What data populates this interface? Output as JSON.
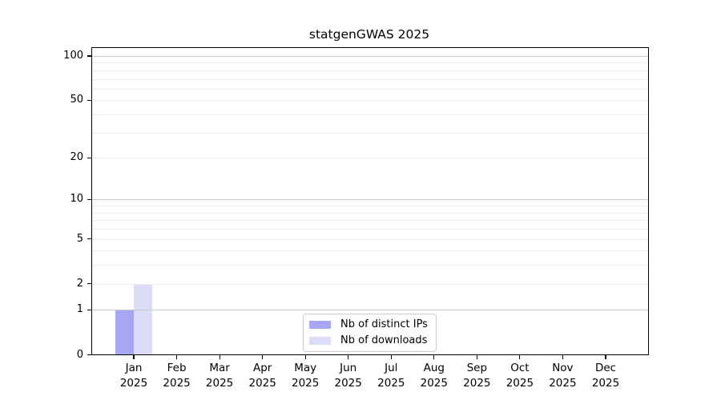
{
  "chart_data": {
    "type": "bar",
    "title": "statgenGWAS 2025",
    "x_months": [
      "Jan",
      "Feb",
      "Mar",
      "Apr",
      "May",
      "Jun",
      "Jul",
      "Aug",
      "Sep",
      "Oct",
      "Nov",
      "Dec"
    ],
    "x_year": "2025",
    "series": [
      {
        "name": "Nb of distinct IPs",
        "color": "#a6a6f2",
        "values": [
          1,
          0,
          0,
          0,
          0,
          0,
          0,
          0,
          0,
          0,
          0,
          0
        ]
      },
      {
        "name": "Nb of downloads",
        "color": "#dcdcf8",
        "values": [
          2,
          0,
          0,
          0,
          0,
          0,
          0,
          0,
          0,
          0,
          0,
          0
        ]
      }
    ],
    "yscale": "log1p",
    "ylim": [
      0,
      113
    ],
    "y_tick_values": [
      0,
      1,
      2,
      5,
      10,
      20,
      50,
      100
    ],
    "y_major_gridlines": [
      1,
      10,
      100
    ],
    "y_minor_gridlines": [
      2,
      3,
      4,
      5,
      6,
      7,
      8,
      9,
      20,
      30,
      40,
      50,
      60,
      70,
      80,
      90
    ],
    "grid": true,
    "legend_position": "lower center",
    "colors": {
      "axis": "#000000",
      "major_grid": "#c6c6c6",
      "minor_grid": "#ececec",
      "background": "#ffffff"
    }
  }
}
